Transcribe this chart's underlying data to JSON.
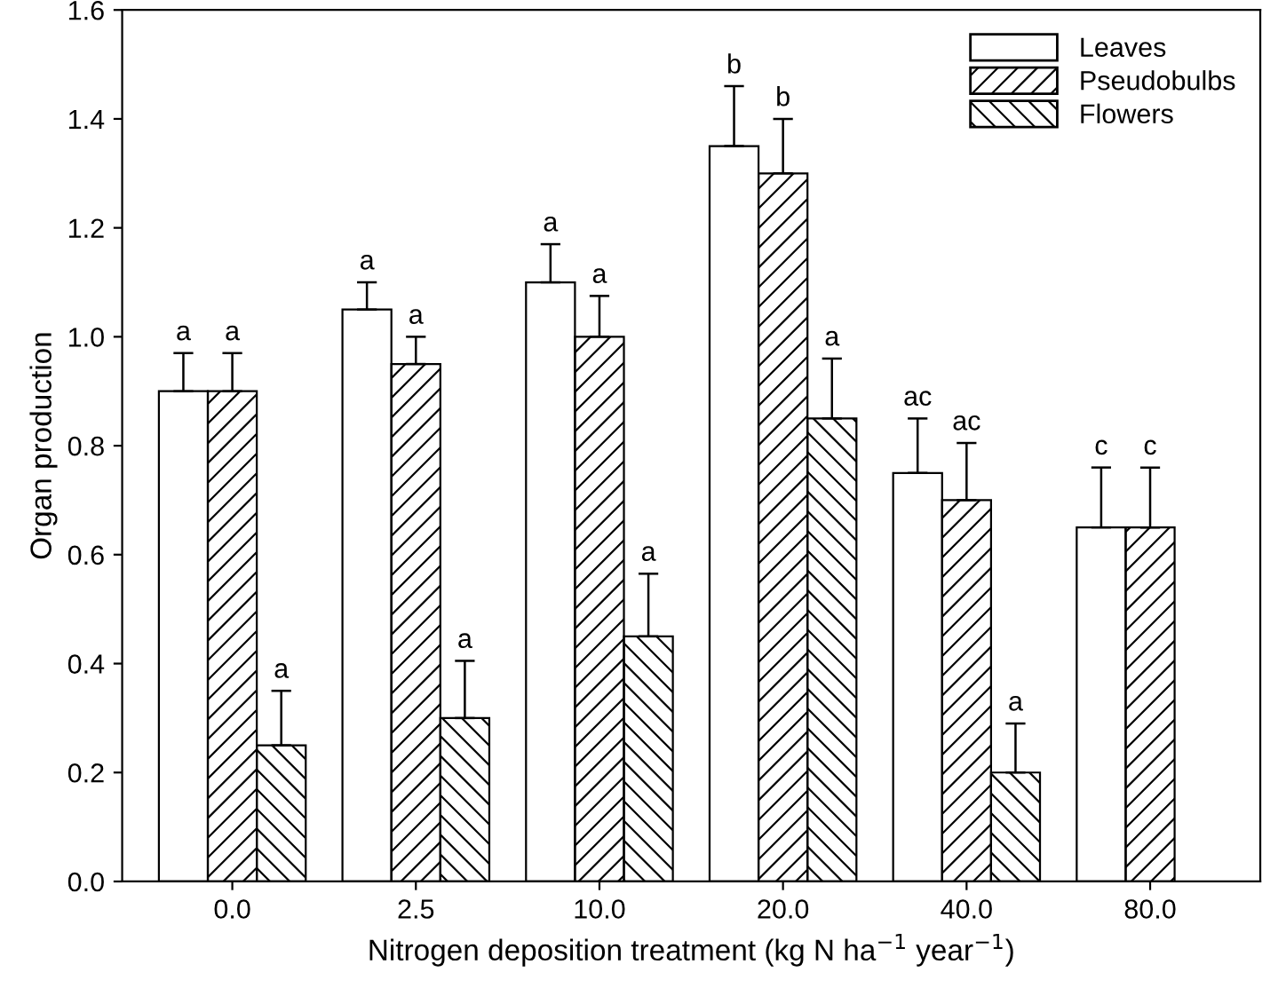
{
  "chart_data": {
    "type": "bar",
    "xlabel": "Nitrogen deposition treatment (kg N ha$^{−1}$ year$^{−1}$)",
    "ylabel": "Organ production",
    "categories": [
      "0.0",
      "2.5",
      "10.0",
      "20.0",
      "40.0",
      "80.0"
    ],
    "series": [
      {
        "name": "Leaves",
        "color": "#ffffff",
        "values": [
          0.9,
          1.05,
          1.1,
          1.35,
          0.75,
          0.65
        ],
        "errors": [
          [
            0.9,
            0.97
          ],
          [
            1.05,
            1.1
          ],
          [
            1.1,
            1.17
          ],
          [
            1.35,
            1.46
          ],
          [
            0.75,
            0.85
          ],
          [
            0.65,
            0.76
          ]
        ]
      },
      {
        "name": "Pseudobulbs",
        "color": "#000000",
        "values": [
          0.9,
          0.95,
          1.0,
          1.3,
          0.7,
          0.65
        ],
        "errors": [
          [
            0.9,
            0.97
          ],
          [
            0.95,
            1.0
          ],
          [
            1.0,
            1.075
          ],
          [
            1.3,
            1.4
          ],
          [
            0.7,
            0.805
          ],
          [
            0.65,
            0.76
          ]
        ]
      },
      {
        "name": "Flowers",
        "color": "#000000",
        "values": [
          0.25,
          0.3,
          0.45,
          0.85,
          0.2,
          null
        ],
        "errors": [
          [
            0.25,
            0.35
          ],
          [
            0.3,
            0.405
          ],
          [
            0.45,
            0.565
          ],
          [
            0.85,
            0.96
          ],
          [
            0.2,
            0.29
          ],
          null
        ]
      }
    ],
    "ylim": [
      0,
      1.6
    ],
    "yticks": [
      {
        "value": 0,
        "label": "0.0"
      },
      0.2,
      0.4,
      0.6,
      0.8,
      {
        "value": 1,
        "label": "1.0"
      },
      1.2,
      1.4,
      1.6
    ],
    "annotations": [
      "a",
      "a",
      "a",
      "a",
      "a",
      "a",
      "a",
      "a",
      "a",
      "b",
      "b",
      "a",
      "ac",
      "ac",
      "a",
      "c",
      "c"
    ],
    "legend": "top right",
    "grid": false
  }
}
